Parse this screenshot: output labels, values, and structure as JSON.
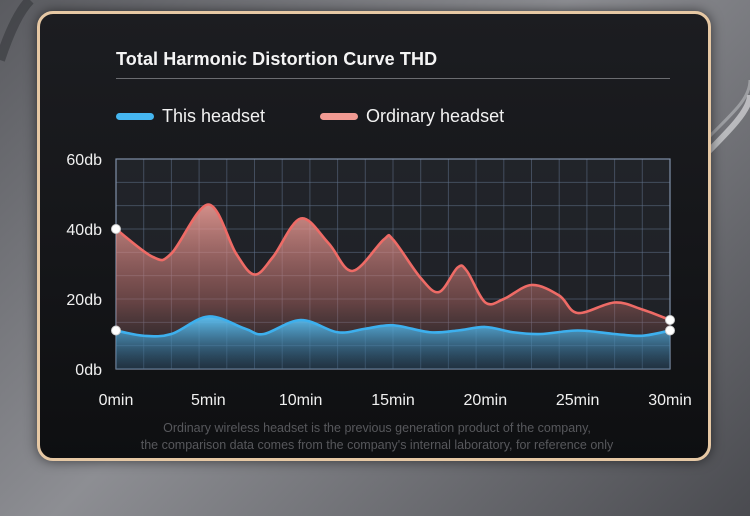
{
  "chart_data": {
    "type": "area",
    "title": "Total Harmonic Distortion Curve THD",
    "xlabel": "",
    "ylabel": "",
    "x_ticks": [
      "0min",
      "5min",
      "10min",
      "15min",
      "20min",
      "25min",
      "30min"
    ],
    "y_ticks": [
      "0db",
      "20db",
      "40db",
      "60db"
    ],
    "xlim": [
      0,
      30
    ],
    "ylim": [
      0,
      60
    ],
    "grid": true,
    "legend_position": "top-left",
    "series": [
      {
        "name": "This headset",
        "color": "#45b6f0",
        "x": [
          0,
          1.5,
          3,
          5,
          7,
          8,
          10,
          12,
          13.5,
          15,
          17,
          18.5,
          20,
          21.5,
          23,
          25,
          27,
          28.5,
          30
        ],
        "values": [
          11,
          9.5,
          10,
          15,
          11.5,
          10,
          14,
          10.5,
          11.5,
          12.5,
          10.5,
          11,
          12,
          10.5,
          10,
          11,
          10,
          9.5,
          11
        ]
      },
      {
        "name": "Ordinary headset",
        "color": "#f19a93",
        "x": [
          0,
          2,
          3,
          5,
          6.5,
          7.5,
          8.5,
          10,
          11.5,
          12.8,
          14.5,
          15,
          16.5,
          17.5,
          18.5,
          19,
          20,
          21,
          22.5,
          24,
          25,
          27,
          28.5,
          30
        ],
        "values": [
          40,
          32,
          33,
          47,
          33,
          27,
          32,
          43,
          36,
          28,
          37,
          37,
          26,
          22,
          29,
          28,
          19,
          20,
          24,
          21,
          16,
          19,
          17,
          14
        ]
      }
    ],
    "footnote": [
      "Ordinary wireless headset is the previous generation product of the company,",
      "the comparison data comes from the company's internal laboratory, for reference only"
    ]
  }
}
